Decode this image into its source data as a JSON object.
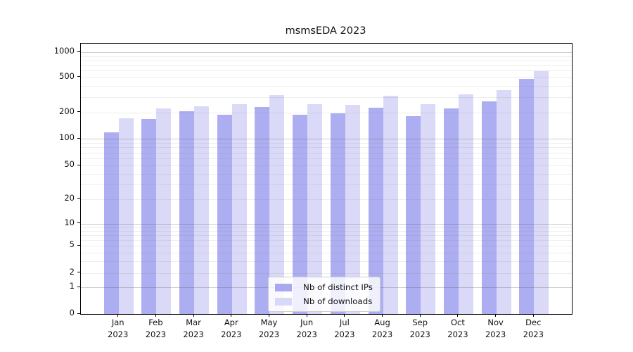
{
  "title": "msmsEDA 2023",
  "chart_data": {
    "type": "bar",
    "title": "msmsEDA 2023",
    "subtitle": "",
    "xlabel": "",
    "ylabel": "",
    "y_scale": "log-like (0,1,2,5,10,20,50,100,200,500,1000)",
    "y_ticks": [
      0,
      1,
      2,
      5,
      10,
      20,
      50,
      100,
      200,
      500,
      1000
    ],
    "ylim": [
      0,
      1250
    ],
    "grid": true,
    "legend_position": "inside-bottom-center",
    "x_labels": [
      {
        "month": "Jan",
        "year": "2023"
      },
      {
        "month": "Feb",
        "year": "2023"
      },
      {
        "month": "Mar",
        "year": "2023"
      },
      {
        "month": "Apr",
        "year": "2023"
      },
      {
        "month": "May",
        "year": "2023"
      },
      {
        "month": "Jun",
        "year": "2023"
      },
      {
        "month": "Jul",
        "year": "2023"
      },
      {
        "month": "Aug",
        "year": "2023"
      },
      {
        "month": "Sep",
        "year": "2023"
      },
      {
        "month": "Oct",
        "year": "2023"
      },
      {
        "month": "Nov",
        "year": "2023"
      },
      {
        "month": "Dec",
        "year": "2023"
      }
    ],
    "categories": [
      "Jan 2023",
      "Feb 2023",
      "Mar 2023",
      "Apr 2023",
      "May 2023",
      "Jun 2023",
      "Jul 2023",
      "Aug 2023",
      "Sep 2023",
      "Oct 2023",
      "Nov 2023",
      "Dec 2023"
    ],
    "series": [
      {
        "name": "Nb of distinct IPs",
        "color": "#a9a9f0",
        "values": [
          118,
          168,
          207,
          187,
          231,
          188,
          195,
          227,
          181,
          223,
          265,
          480
        ]
      },
      {
        "name": "Nb of downloads",
        "color": "#d8d8f8",
        "values": [
          170,
          224,
          236,
          249,
          315,
          248,
          242,
          308,
          250,
          318,
          360,
          590
        ]
      }
    ],
    "colors": {
      "axis": "#000000",
      "major_grid": "#c8c8c8",
      "minor_grid": "#eaeaea",
      "background": "#ffffff"
    }
  }
}
